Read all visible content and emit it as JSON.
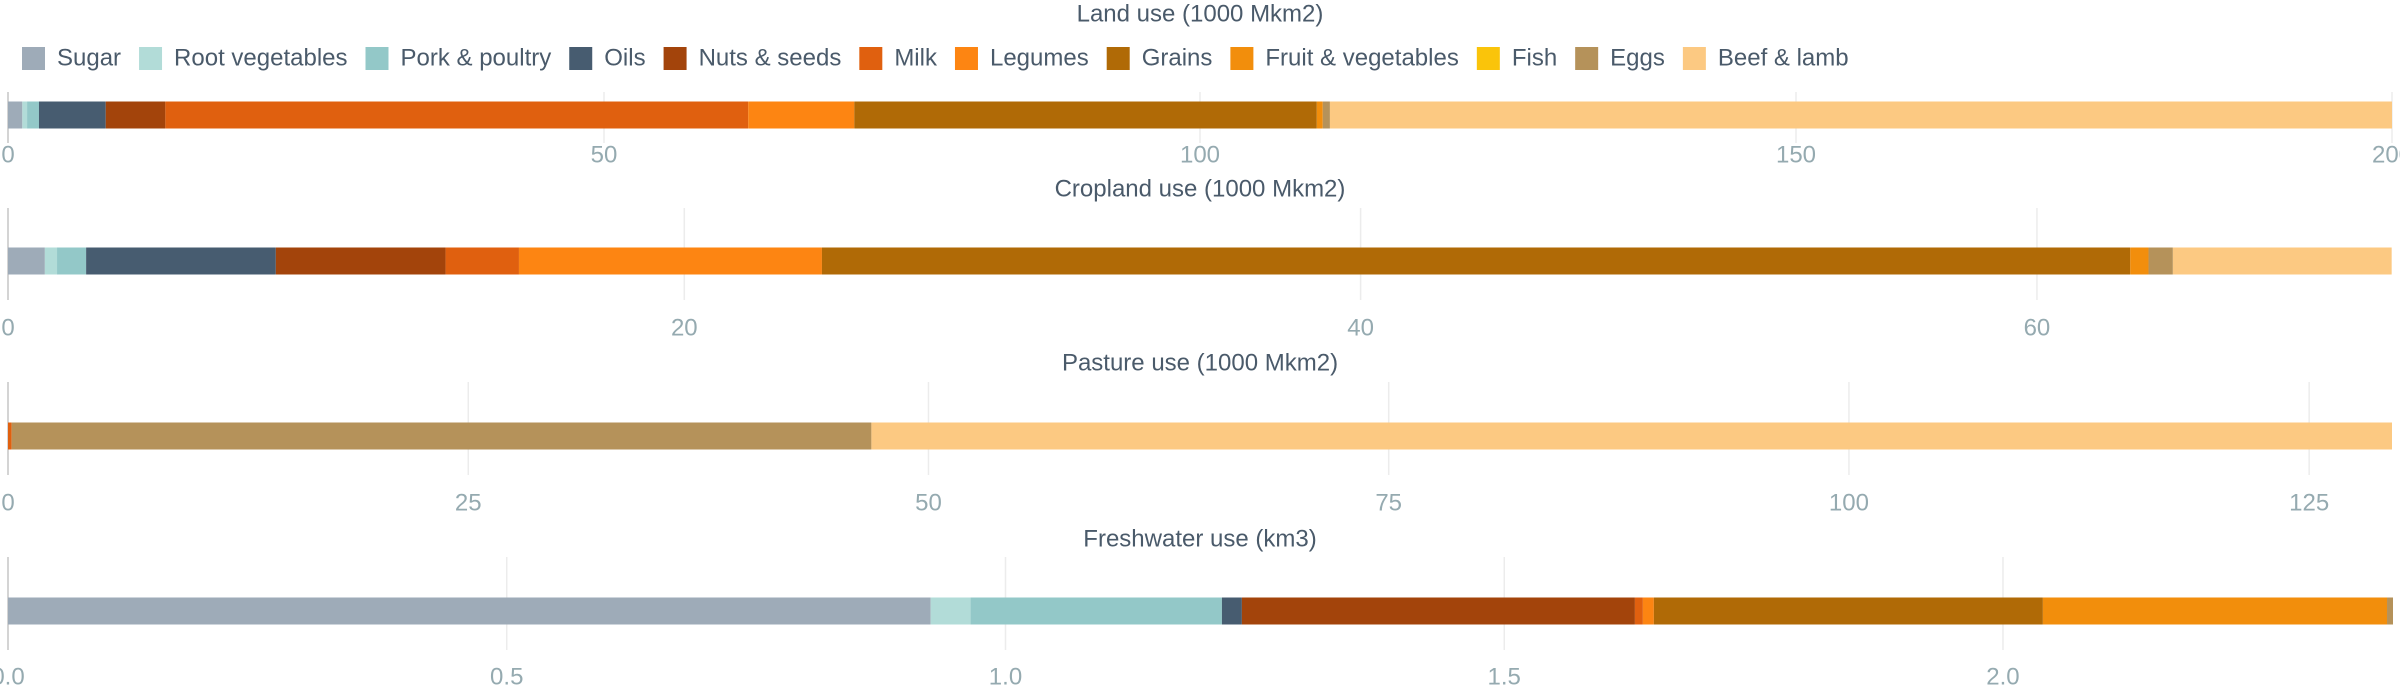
{
  "chart_data": [
    {
      "type": "stacked_bar",
      "title": "Land use (1000 Mkm2)",
      "xlim": [
        0,
        200
      ],
      "xticks": [
        0,
        50,
        100,
        150,
        200
      ],
      "grid": true,
      "legend": "top",
      "series": [
        {
          "name": "Sugar",
          "color": "#9eabb8",
          "values": [
            1.2
          ]
        },
        {
          "name": "Root vegetables",
          "color": "#b2dcd8",
          "values": [
            0.4
          ]
        },
        {
          "name": "Pork & poultry",
          "color": "#93c8c8",
          "values": [
            1.0
          ]
        },
        {
          "name": "Oils",
          "color": "#475c70",
          "values": [
            5.6
          ]
        },
        {
          "name": "Nuts & seeds",
          "color": "#a3440b",
          "values": [
            5.0
          ]
        },
        {
          "name": "Milk",
          "color": "#e0600f",
          "values": [
            48.9
          ]
        },
        {
          "name": "Legumes",
          "color": "#fd8512",
          "values": [
            8.9
          ]
        },
        {
          "name": "Grains",
          "color": "#b06a06",
          "values": [
            38.8
          ]
        },
        {
          "name": "Fruit & vegetables",
          "color": "#f28e0c",
          "values": [
            0.5
          ]
        },
        {
          "name": "Fish",
          "color": "#fac40a",
          "values": [
            0
          ]
        },
        {
          "name": "Eggs",
          "color": "#b5925a",
          "values": [
            0.6
          ]
        },
        {
          "name": "Beef & lamb",
          "color": "#fcc982",
          "values": [
            89.1
          ]
        }
      ]
    },
    {
      "type": "stacked_bar",
      "title": "Cropland use (1000 Mkm2)",
      "xlim": [
        0,
        70.5
      ],
      "xticks": [
        0,
        20,
        40,
        60
      ],
      "grid": true,
      "series": [
        {
          "name": "Sugar",
          "color": "#9eabb8",
          "values": [
            1.09
          ]
        },
        {
          "name": "Root vegetables",
          "color": "#b2dcd8",
          "values": [
            0.36
          ]
        },
        {
          "name": "Pork & poultry",
          "color": "#93c8c8",
          "values": [
            0.86
          ]
        },
        {
          "name": "Oils",
          "color": "#475c70",
          "values": [
            5.61
          ]
        },
        {
          "name": "Nuts & seeds",
          "color": "#a3440b",
          "values": [
            5.02
          ]
        },
        {
          "name": "Milk",
          "color": "#e0600f",
          "values": [
            2.17
          ]
        },
        {
          "name": "Legumes",
          "color": "#fd8512",
          "values": [
            8.96
          ]
        },
        {
          "name": "Grains",
          "color": "#b06a06",
          "values": [
            38.69
          ]
        },
        {
          "name": "Fruit & vegetables",
          "color": "#f28e0c",
          "values": [
            0.54
          ]
        },
        {
          "name": "Fish",
          "color": "#fac40a",
          "values": [
            0
          ]
        },
        {
          "name": "Eggs",
          "color": "#b5925a",
          "values": [
            0.72
          ]
        },
        {
          "name": "Beef & lamb",
          "color": "#fcc982",
          "values": [
            6.47
          ]
        }
      ]
    },
    {
      "type": "stacked_bar",
      "title": "Pasture use (1000 Mkm2)",
      "xlim": [
        0,
        129.5
      ],
      "xticks": [
        0,
        25,
        50,
        75,
        100,
        125
      ],
      "grid": true,
      "series": [
        {
          "name": "Sugar",
          "color": "#9eabb8",
          "values": [
            0
          ]
        },
        {
          "name": "Root vegetables",
          "color": "#b2dcd8",
          "values": [
            0
          ]
        },
        {
          "name": "Pork & poultry",
          "color": "#93c8c8",
          "values": [
            0
          ]
        },
        {
          "name": "Oils",
          "color": "#475c70",
          "values": [
            0
          ]
        },
        {
          "name": "Nuts & seeds",
          "color": "#a3440b",
          "values": [
            0
          ]
        },
        {
          "name": "Milk",
          "color": "#e0600f",
          "values": [
            0.2
          ]
        },
        {
          "name": "Legumes",
          "color": "#fd8512",
          "values": [
            0
          ]
        },
        {
          "name": "Grains",
          "color": "#b06a06",
          "values": [
            0
          ]
        },
        {
          "name": "Fruit & vegetables",
          "color": "#f28e0c",
          "values": [
            0
          ]
        },
        {
          "name": "Fish",
          "color": "#fac40a",
          "values": [
            0
          ]
        },
        {
          "name": "Eggs",
          "color": "#b5925a",
          "values": [
            46.7
          ]
        },
        {
          "name": "Beef & lamb",
          "color": "#fcc982",
          "values": [
            82.6
          ]
        }
      ]
    },
    {
      "type": "stacked_bar",
      "title": "Freshwater use (km3)",
      "xlim": [
        0,
        2.39
      ],
      "xticks": [
        {
          "value": 0,
          "label": "0.0"
        },
        0.5,
        {
          "value": 1,
          "label": "1.0"
        },
        1.5,
        {
          "value": 2,
          "label": "2.0"
        }
      ],
      "grid": true,
      "series": [
        {
          "name": "Sugar",
          "color": "#9eabb8",
          "values": [
            0.925
          ]
        },
        {
          "name": "Root vegetables",
          "color": "#b2dcd8",
          "values": [
            0.04
          ]
        },
        {
          "name": "Pork & poultry",
          "color": "#93c8c8",
          "values": [
            0.252
          ]
        },
        {
          "name": "Oils",
          "color": "#475c70",
          "values": [
            0.02
          ]
        },
        {
          "name": "Nuts & seeds",
          "color": "#a3440b",
          "values": [
            0.394
          ]
        },
        {
          "name": "Milk",
          "color": "#e0600f",
          "values": [
            0.008
          ]
        },
        {
          "name": "Legumes",
          "color": "#fd8512",
          "values": [
            0.011
          ]
        },
        {
          "name": "Grains",
          "color": "#b06a06",
          "values": [
            0.39
          ]
        },
        {
          "name": "Fruit & vegetables",
          "color": "#f28e0c",
          "values": [
            0.345
          ]
        },
        {
          "name": "Fish",
          "color": "#fac40a",
          "values": [
            0
          ]
        },
        {
          "name": "Eggs",
          "color": "#b5925a",
          "values": [
            0.006
          ]
        },
        {
          "name": "Beef & lamb",
          "color": "#fcc982",
          "values": [
            0
          ]
        }
      ]
    }
  ]
}
